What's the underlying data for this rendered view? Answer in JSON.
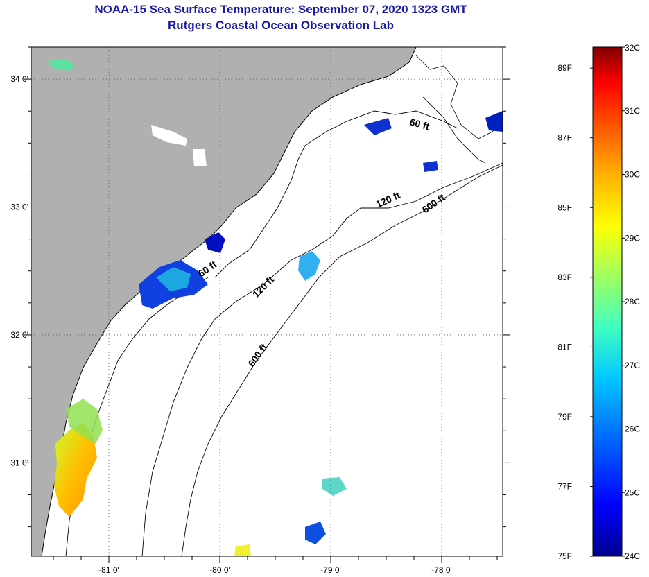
{
  "title": {
    "line1": "NOAA-15 Sea Surface Temperature:  September 07, 2020 1323 GMT",
    "line2": "Rutgers Coastal Ocean Observation Lab"
  },
  "map": {
    "lon_range": [
      -81.7,
      -77.45
    ],
    "lat_range": [
      30.27,
      34.25
    ],
    "lon_ticks": [
      {
        "value": -81,
        "label": "-81 0'"
      },
      {
        "value": -80,
        "label": "-80 0'"
      },
      {
        "value": -79,
        "label": "-79 0'"
      },
      {
        "value": -78,
        "label": "-78 0'"
      }
    ],
    "lat_ticks": [
      {
        "value": 34,
        "label": "34 0'"
      },
      {
        "value": 33,
        "label": "33 0'"
      },
      {
        "value": 32,
        "label": "32 0'"
      },
      {
        "value": 31,
        "label": "31 0'"
      }
    ],
    "gridlines": "dotted",
    "land_color": "#b0b0b0",
    "ocean_color": "#ffffff",
    "depth_contours": [
      {
        "label": "60 ft"
      },
      {
        "label": "60 ft"
      },
      {
        "label": "120 ft"
      },
      {
        "label": "120 ft"
      },
      {
        "label": "600 ft"
      },
      {
        "label": "600 ft"
      }
    ]
  },
  "colorbar": {
    "celsius_range": [
      24,
      32
    ],
    "fahrenheit_range": [
      75,
      89.6
    ],
    "celsius_labels": [
      "32C",
      "31C",
      "30C",
      "29C",
      "28C",
      "27C",
      "26C",
      "25C",
      "24C"
    ],
    "fahrenheit_labels": [
      {
        "value": 89,
        "label": "89F"
      },
      {
        "value": 87,
        "label": "87F"
      },
      {
        "value": 85,
        "label": "85F"
      },
      {
        "value": 83,
        "label": "83F"
      },
      {
        "value": 81,
        "label": "81F"
      },
      {
        "value": 79,
        "label": "79F"
      },
      {
        "value": 77,
        "label": "77F"
      },
      {
        "value": 75,
        "label": "75F"
      }
    ],
    "colors": [
      "#00008f",
      "#0000ff",
      "#0060ff",
      "#00c8ff",
      "#40ffc0",
      "#a0ff60",
      "#ffff00",
      "#ffb000",
      "#ff5000",
      "#ff0000",
      "#800000"
    ]
  }
}
